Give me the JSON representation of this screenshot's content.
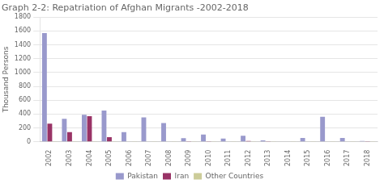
{
  "chart_data": {
    "type": "bar",
    "title": "Graph 2-2: Repatriation of Afghan Migrants -2002-2018",
    "ylabel": "Thousand Persons",
    "categories": [
      "2002",
      "2003",
      "2004",
      "2005",
      "2006",
      "2007",
      "2008",
      "2009",
      "2010",
      "2011",
      "2012",
      "2013",
      "2014",
      "2015",
      "2016",
      "2017",
      "2018"
    ],
    "series": [
      {
        "name": "Pakistan",
        "color": "#9999cc",
        "values": [
          1570,
          330,
          390,
          450,
          140,
          350,
          270,
          50,
          105,
          45,
          85,
          20,
          5,
          55,
          360,
          55,
          10
        ]
      },
      {
        "name": "Iran",
        "color": "#993366",
        "values": [
          260,
          140,
          370,
          65,
          5,
          5,
          5,
          3,
          3,
          5,
          10,
          3,
          5,
          5,
          5,
          5,
          3
        ]
      },
      {
        "name": "Other Countries",
        "color": "#cccc99",
        "values": [
          2,
          2,
          2,
          2,
          2,
          2,
          2,
          2,
          2,
          2,
          2,
          2,
          2,
          2,
          2,
          2,
          2
        ]
      }
    ],
    "ylim": [
      0,
      1800
    ],
    "yticks": [
      0,
      200,
      400,
      600,
      800,
      1000,
      1200,
      1400,
      1600,
      1800
    ],
    "grid": true,
    "legend": "bottom"
  }
}
